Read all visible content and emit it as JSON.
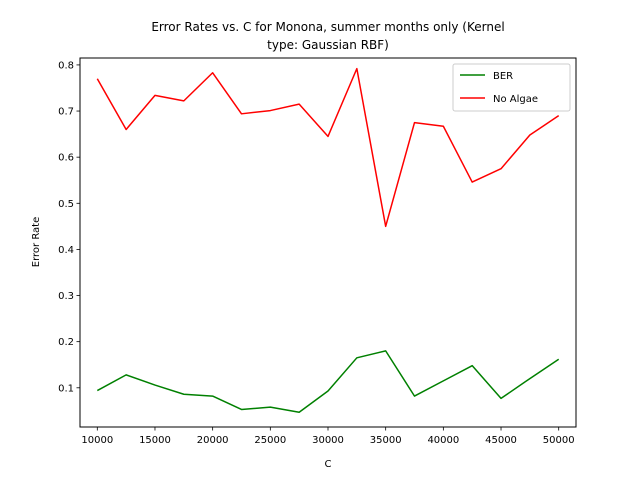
{
  "chart_data": {
    "type": "line",
    "title_lines": [
      "Error Rates vs. C for Monona, summer months only (Kernel",
      "type: Gaussian RBF)"
    ],
    "xlabel": "C",
    "ylabel": "Error Rate",
    "xlim": [
      8500,
      51500
    ],
    "ylim": [
      0.015,
      0.815
    ],
    "xticks": [
      10000,
      15000,
      20000,
      25000,
      30000,
      35000,
      40000,
      45000,
      50000
    ],
    "yticks": [
      0.1,
      0.2,
      0.3,
      0.4,
      0.5,
      0.6,
      0.7,
      0.8
    ],
    "ytick_labels": [
      "0.1",
      "0.2",
      "0.3",
      "0.4",
      "0.5",
      "0.6",
      "0.7",
      "0.8"
    ],
    "grid": false,
    "legend_position": "top-right",
    "x": [
      10000,
      12500,
      15000,
      17500,
      20000,
      22500,
      25000,
      27500,
      30000,
      32500,
      35000,
      37500,
      40000,
      42500,
      45000,
      47500,
      50000
    ],
    "series": [
      {
        "name": "BER",
        "color": "#008000",
        "values": [
          0.094,
          0.128,
          0.106,
          0.086,
          0.082,
          0.053,
          0.058,
          0.047,
          0.093,
          0.165,
          0.18,
          0.082,
          0.115,
          0.148,
          0.077,
          0.12,
          0.162
        ]
      },
      {
        "name": "No Algae",
        "color": "#ff0000",
        "values": [
          0.77,
          0.66,
          0.734,
          0.722,
          0.783,
          0.694,
          0.701,
          0.715,
          0.645,
          0.792,
          0.45,
          0.675,
          0.667,
          0.546,
          0.575,
          0.648,
          0.69
        ]
      }
    ]
  }
}
